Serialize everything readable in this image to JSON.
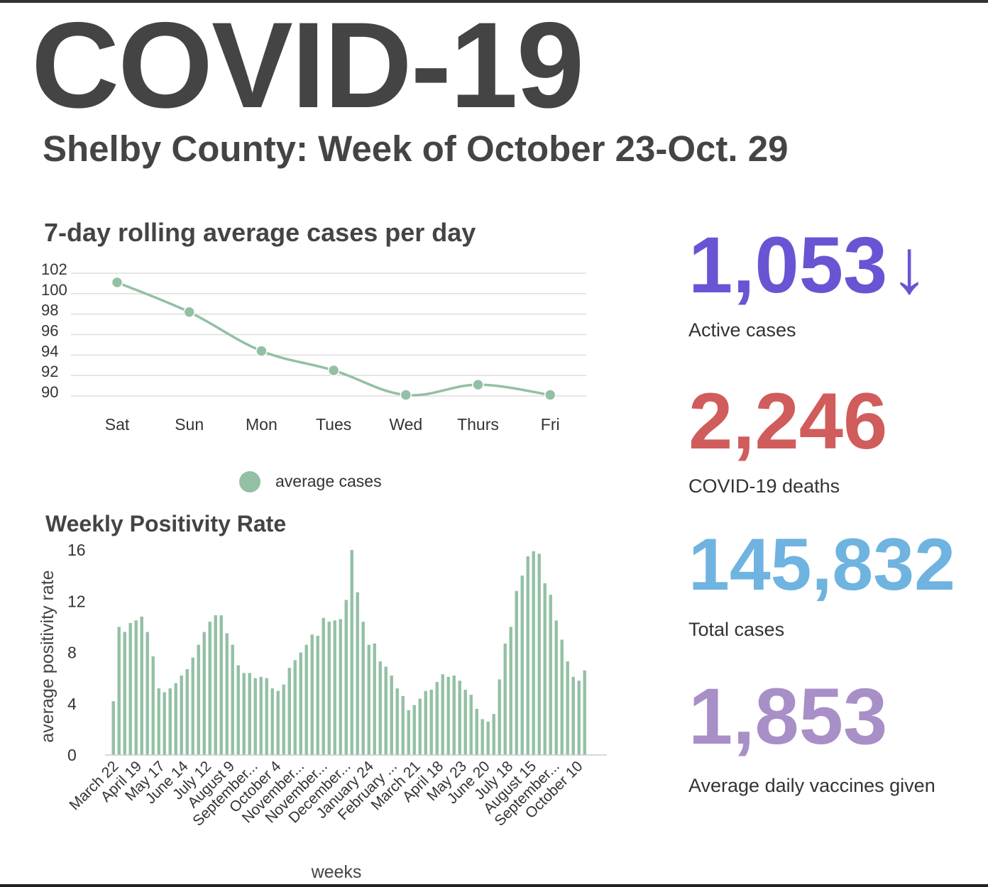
{
  "header": {
    "title": "COVID-19",
    "subtitle": "Shelby County: Week of October 23-Oct. 29"
  },
  "colors": {
    "text": "#444444",
    "series": "#93c0a4",
    "active": "#6a54d3",
    "deaths": "#d05c5c",
    "total": "#6fb3e0",
    "vaccines": "#a88fc7"
  },
  "stats": [
    {
      "value": "1,053",
      "label": "Active cases",
      "trend": "↓",
      "color": "#6a54d3",
      "trend_icon": "down-arrow-icon"
    },
    {
      "value": "2,246",
      "label": "COVID-19 deaths",
      "trend": "",
      "color": "#d05c5c"
    },
    {
      "value": "145,832",
      "label": "Total cases",
      "trend": "",
      "color": "#6fb3e0"
    },
    {
      "value": "1,853",
      "label": "Average daily vaccines given",
      "trend": "",
      "color": "#a88fc7"
    }
  ],
  "chart_data": [
    {
      "type": "line",
      "title": "7-day rolling average cases per day",
      "categories": [
        "Sat",
        "Sun",
        "Mon",
        "Tues",
        "Wed",
        "Thurs",
        "Fri"
      ],
      "series": [
        {
          "name": "average cases",
          "values": [
            101.1,
            98.2,
            94.4,
            92.5,
            90.1,
            91.1,
            90.1
          ]
        }
      ],
      "y_ticks": [
        102,
        100,
        98,
        96,
        94,
        92,
        90
      ],
      "ylim": [
        90,
        102
      ],
      "grid": true,
      "legend": "bottom-center"
    },
    {
      "type": "bar",
      "title": "Weekly Positivity Rate",
      "xlabel": "weeks",
      "ylabel": "average positivity rate",
      "ylim": [
        0,
        17
      ],
      "y_ticks": [
        16,
        12,
        8,
        4,
        0
      ],
      "grid": false,
      "tick_labels": [
        "March 22",
        "April 19",
        "May 17",
        "June 14",
        "July 12",
        "August 9",
        "September...",
        "October 4",
        "November...",
        "November...",
        "December...",
        "January 24",
        "February ...",
        "March 21",
        "April 18",
        "May 23",
        "June 20",
        "July 18",
        "August 15",
        "September...",
        "October 10"
      ],
      "values": [
        4.2,
        10.0,
        9.6,
        10.3,
        10.5,
        10.8,
        9.6,
        7.7,
        5.2,
        4.9,
        5.2,
        5.6,
        6.2,
        6.7,
        7.6,
        8.6,
        9.6,
        10.4,
        10.9,
        10.9,
        9.5,
        8.6,
        7.0,
        6.4,
        6.4,
        6.0,
        6.1,
        6.0,
        5.2,
        5.0,
        5.5,
        6.8,
        7.4,
        8.0,
        8.6,
        9.4,
        9.3,
        10.7,
        10.4,
        10.5,
        10.6,
        12.1,
        16.0,
        12.7,
        10.4,
        8.6,
        8.7,
        7.3,
        6.9,
        6.2,
        5.2,
        4.6,
        3.5,
        3.9,
        4.4,
        5.0,
        5.1,
        5.7,
        6.3,
        6.1,
        6.2,
        5.8,
        5.1,
        4.7,
        3.6,
        2.8,
        2.6,
        3.2,
        5.9,
        8.7,
        10.0,
        12.8,
        14.0,
        15.5,
        15.9,
        15.7,
        13.4,
        12.5,
        10.5,
        9.0,
        7.3,
        6.1,
        5.8,
        6.6
      ]
    }
  ]
}
